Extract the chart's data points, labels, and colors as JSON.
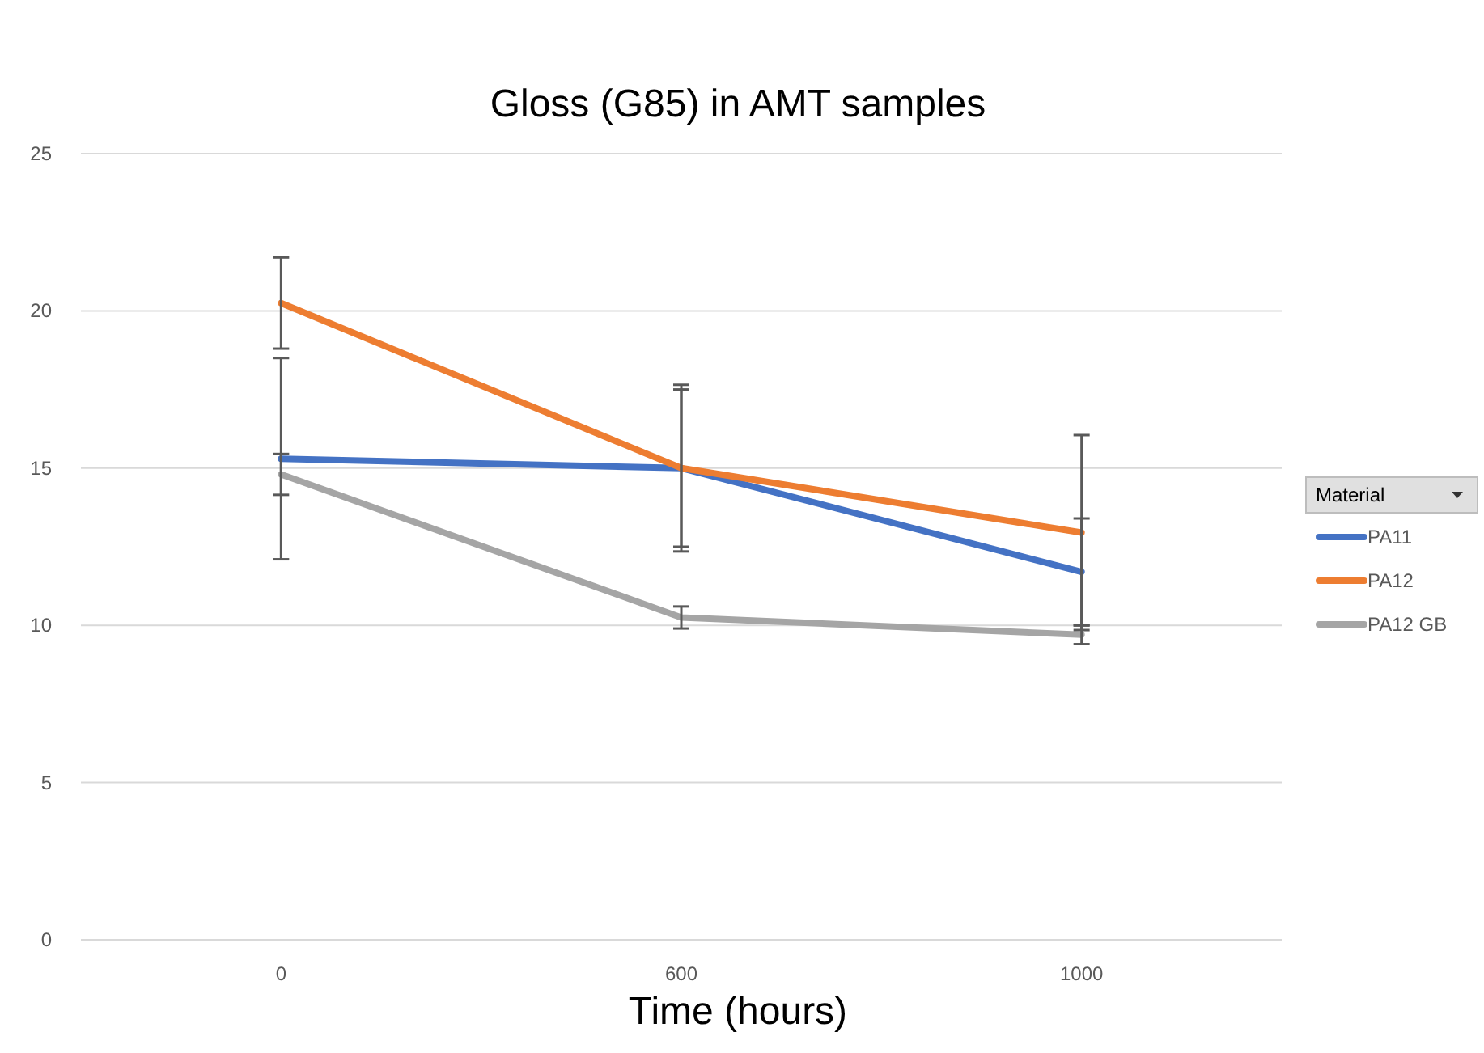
{
  "chart_data": {
    "type": "line",
    "title": "Gloss (G85) in AMT samples",
    "xlabel": "Time (hours)",
    "legend_title": "Material",
    "categories": [
      "0",
      "600",
      "1000"
    ],
    "series": [
      {
        "name": "PA11",
        "color": "#4472c4",
        "values": [
          15.3,
          15.0,
          11.7
        ],
        "errors": [
          3.2,
          2.5,
          1.7
        ]
      },
      {
        "name": "PA12",
        "color": "#ed7d31",
        "values": [
          20.25,
          15.0,
          12.95
        ],
        "errors": [
          1.45,
          2.65,
          3.1
        ]
      },
      {
        "name": "PA12 GB",
        "color": "#a5a5a5",
        "values": [
          14.8,
          10.25,
          9.7
        ],
        "errors": [
          0.65,
          0.35,
          0.3
        ]
      }
    ],
    "ylim": [
      0,
      25
    ],
    "yticks": [
      0,
      5,
      10,
      15,
      20,
      25
    ],
    "grid": "y",
    "legend": "right",
    "marker": "none",
    "line_style": "solid"
  }
}
